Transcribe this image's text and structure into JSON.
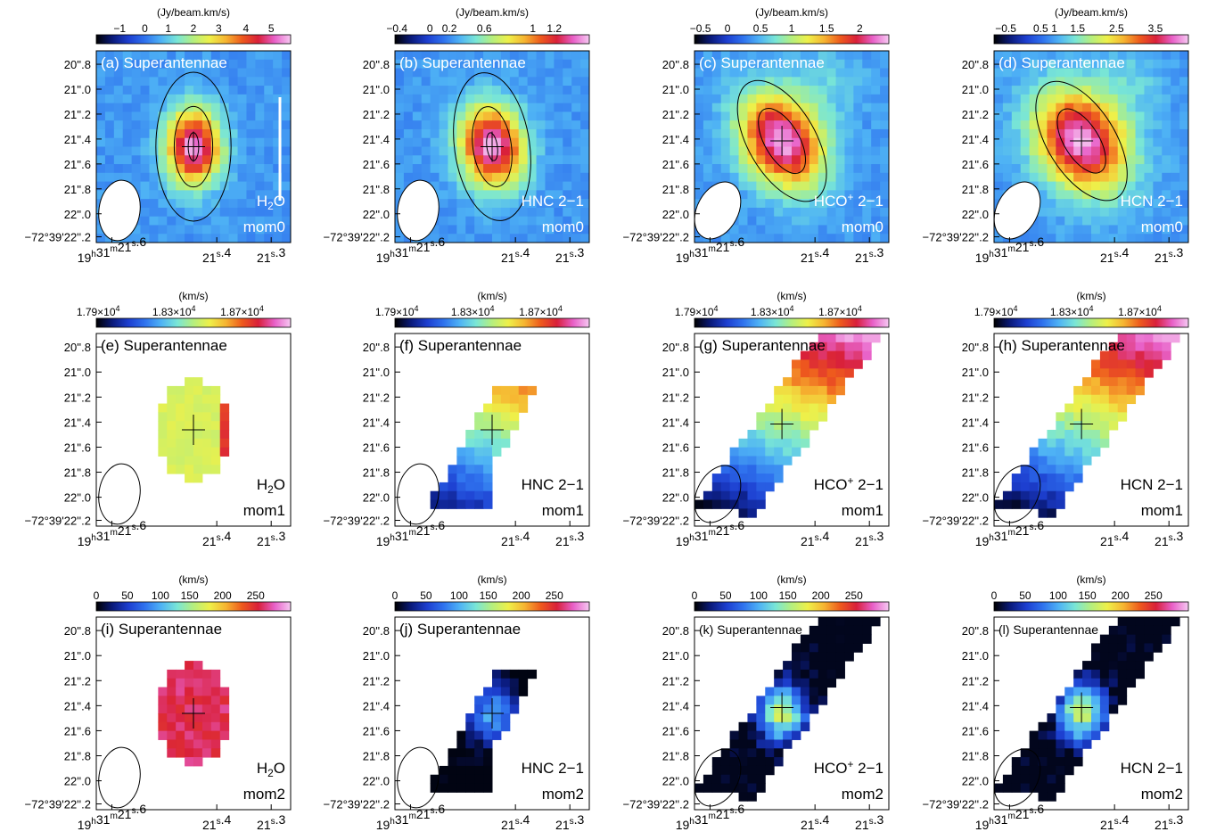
{
  "colors": {
    "colorbar_stops": [
      "#000000",
      "#0a1a7a",
      "#1d3fd0",
      "#2f72ee",
      "#4eb2f5",
      "#79e6d6",
      "#b5ef7e",
      "#eef049",
      "#f6b431",
      "#ee5a1d",
      "#d9203a",
      "#e860c8",
      "#f6c8f2"
    ]
  },
  "common": {
    "source": "Superantennae",
    "dec_ticks": [
      "20''.8",
      "21''.0",
      "21''.2",
      "21''.4",
      "21''.6",
      "21''.8",
      "22''.0",
      "−72°39'22''.2"
    ],
    "ra_ticks": [
      "19h31m21s.6",
      "21s.4",
      "21s.3"
    ]
  },
  "rows": [
    {
      "unit": "(Jy/beam.km/s)",
      "panels": [
        {
          "letter": "(a)",
          "molecule": "H2O",
          "moment": "mom0",
          "cbar_ticks": [
            "−1",
            "0",
            "1",
            "2",
            "3",
            "4",
            "5"
          ]
        },
        {
          "letter": "(b)",
          "molecule": "HNC 2−1",
          "moment": "mom0",
          "cbar_ticks": [
            "−0.4",
            "0",
            "0.2",
            "0.6",
            "1",
            "1.2"
          ]
        },
        {
          "letter": "(c)",
          "molecule": "HCO+ 2−1",
          "moment": "mom0",
          "cbar_ticks": [
            "−0.5",
            "0",
            "0.5",
            "1",
            "1.5",
            "2"
          ]
        },
        {
          "letter": "(d)",
          "molecule": "HCN 2−1",
          "moment": "mom0",
          "cbar_ticks": [
            "−0.5",
            "0.5",
            "1",
            "1.5",
            "2.5",
            "3.5"
          ]
        }
      ]
    },
    {
      "unit": "(km/s)",
      "panels": [
        {
          "letter": "(e)",
          "molecule": "H2O",
          "moment": "mom1",
          "cbar_ticks": [
            "1.79×10^4",
            "1.83×10^4",
            "1.87×10^4"
          ]
        },
        {
          "letter": "(f)",
          "molecule": "HNC 2−1",
          "moment": "mom1",
          "cbar_ticks": [
            "1.79×10^4",
            "1.83×10^4",
            "1.87×10^4"
          ]
        },
        {
          "letter": "(g)",
          "molecule": "HCO+ 2−1",
          "moment": "mom1",
          "cbar_ticks": [
            "1.79×10^4",
            "1.83×10^4",
            "1.87×10^4"
          ]
        },
        {
          "letter": "(h)",
          "molecule": "HCN 2−1",
          "moment": "mom1",
          "cbar_ticks": [
            "1.79×10^4",
            "1.83×10^4",
            "1.87×10^4"
          ]
        }
      ]
    },
    {
      "unit": "(km/s)",
      "panels": [
        {
          "letter": "(i)",
          "molecule": "H2O",
          "moment": "mom2",
          "cbar_ticks": [
            "0",
            "50",
            "100",
            "150",
            "200",
            "250"
          ]
        },
        {
          "letter": "(j)",
          "molecule": "HNC 2−1",
          "moment": "mom2",
          "cbar_ticks": [
            "0",
            "50",
            "100",
            "150",
            "200",
            "250"
          ]
        },
        {
          "letter": "(k)",
          "molecule": "HCO+ 2−1",
          "moment": "mom2",
          "cbar_ticks": [
            "0",
            "50",
            "100",
            "150",
            "200",
            "250"
          ]
        },
        {
          "letter": "(l)",
          "molecule": "HCN 2−1",
          "moment": "mom2",
          "cbar_ticks": [
            "0",
            "50",
            "100",
            "150",
            "200",
            "250"
          ]
        }
      ]
    }
  ]
}
